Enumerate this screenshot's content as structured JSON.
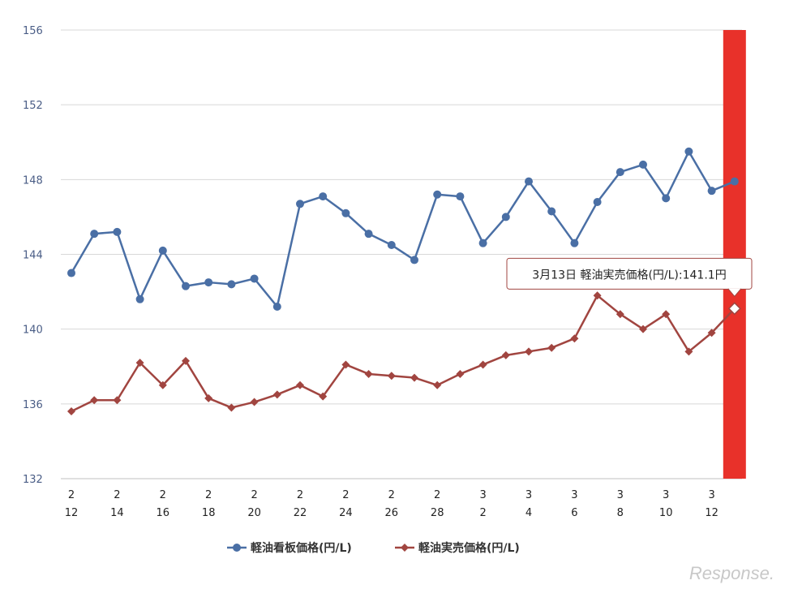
{
  "chart_data": {
    "type": "line",
    "title": "",
    "xlabel": "",
    "ylabel": "",
    "ylim": [
      132,
      156
    ],
    "yticks": [
      132,
      136,
      140,
      144,
      148,
      152,
      156
    ],
    "grid": true,
    "legend_position": "bottom-center",
    "x": [
      "2/12",
      "2/13",
      "2/14",
      "2/15",
      "2/16",
      "2/17",
      "2/18",
      "2/19",
      "2/20",
      "2/21",
      "2/22",
      "2/23",
      "2/24",
      "2/25",
      "2/26",
      "2/27",
      "2/28",
      "3/1",
      "3/2",
      "3/3",
      "3/4",
      "3/5",
      "3/6",
      "3/7",
      "3/8",
      "3/9",
      "3/10",
      "3/11",
      "3/12",
      "3/13"
    ],
    "x_tick_labels": [
      {
        "month": "2",
        "day": "12",
        "index": 0
      },
      {
        "month": "2",
        "day": "14",
        "index": 2
      },
      {
        "month": "2",
        "day": "16",
        "index": 4
      },
      {
        "month": "2",
        "day": "18",
        "index": 6
      },
      {
        "month": "2",
        "day": "20",
        "index": 8
      },
      {
        "month": "2",
        "day": "22",
        "index": 10
      },
      {
        "month": "2",
        "day": "24",
        "index": 12
      },
      {
        "month": "2",
        "day": "26",
        "index": 14
      },
      {
        "month": "2",
        "day": "28",
        "index": 16
      },
      {
        "month": "3",
        "day": "2",
        "index": 18
      },
      {
        "month": "3",
        "day": "4",
        "index": 20
      },
      {
        "month": "3",
        "day": "6",
        "index": 22
      },
      {
        "month": "3",
        "day": "8",
        "index": 24
      },
      {
        "month": "3",
        "day": "10",
        "index": 26
      },
      {
        "month": "3",
        "day": "12",
        "index": 28
      }
    ],
    "series": [
      {
        "name": "軽油看板価格(円/L)",
        "color": "#4a6fa5",
        "marker": "circle",
        "values": [
          143.0,
          145.1,
          145.2,
          141.6,
          144.2,
          142.3,
          142.5,
          142.4,
          142.7,
          141.2,
          146.7,
          147.1,
          146.2,
          145.1,
          144.5,
          143.7,
          147.2,
          147.1,
          144.6,
          146.0,
          147.9,
          146.3,
          144.6,
          146.8,
          148.4,
          148.8,
          147.0,
          149.5,
          147.4,
          147.9
        ]
      },
      {
        "name": "軽油実売価格(円/L)",
        "color": "#a14540",
        "marker": "diamond",
        "values": [
          135.6,
          136.2,
          136.2,
          138.2,
          137.0,
          138.3,
          136.3,
          135.8,
          136.1,
          136.5,
          137.0,
          136.4,
          138.1,
          137.6,
          137.5,
          137.4,
          137.0,
          137.6,
          138.1,
          138.6,
          138.8,
          139.0,
          139.5,
          141.8,
          140.8,
          140.0,
          140.8,
          138.8,
          139.8,
          141.1
        ]
      }
    ],
    "highlight": {
      "index": 29,
      "color": "#e8312a"
    },
    "tooltip": {
      "text": "3月13日 軽油実売価格(円/L):141.1円"
    }
  },
  "watermark": "Response."
}
